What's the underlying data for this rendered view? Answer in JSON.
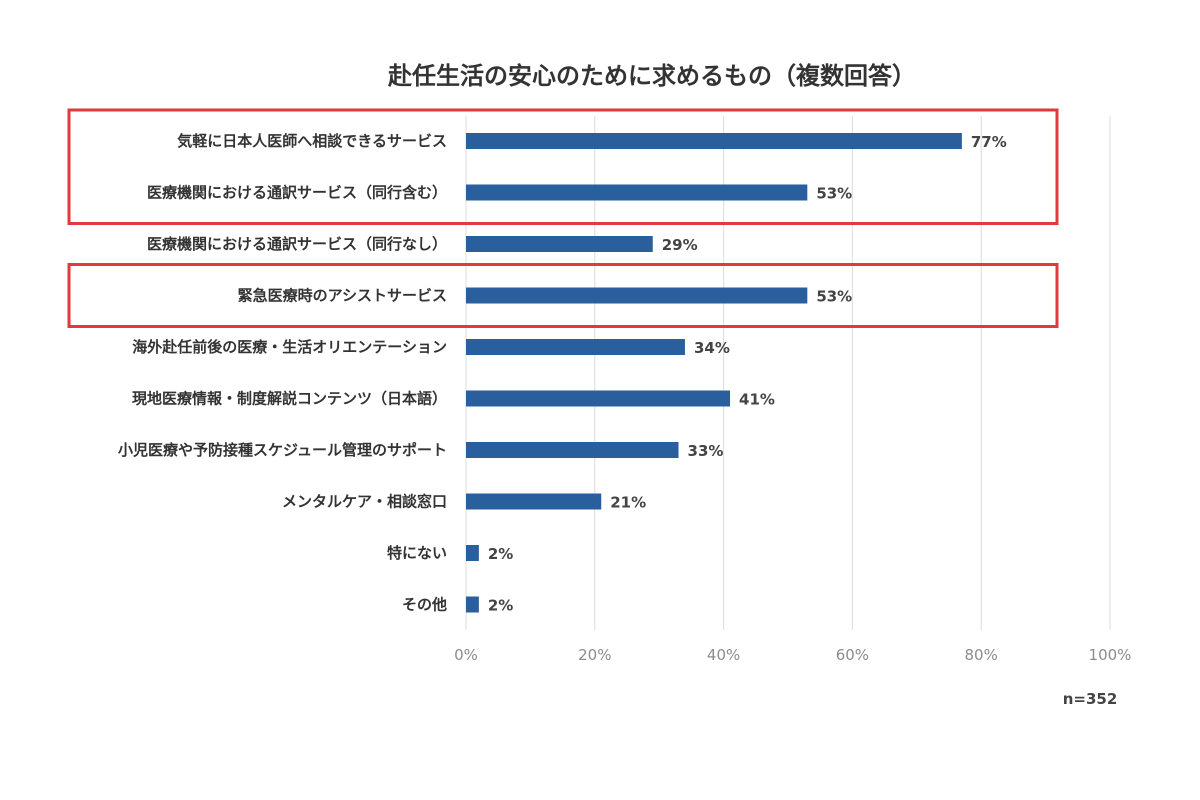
{
  "chart_data": {
    "type": "bar",
    "orientation": "horizontal",
    "title": "赴任生活の安心のために求めるもの（複数回答）",
    "categories": [
      "気軽に日本人医師へ相談できるサービス",
      "医療機関における通訳サービス（同行含む）",
      "医療機関における通訳サービス（同行なし）",
      "緊急医療時のアシストサービス",
      "海外赴任前後の医療・生活オリエンテーション",
      "現地医療情報・制度解説コンテンツ（日本語）",
      "小児医療や予防接種スケジュール管理のサポート",
      "メンタルケア・相談窓口",
      "特にない",
      "その他"
    ],
    "values": [
      77,
      53,
      29,
      53,
      34,
      41,
      33,
      21,
      2,
      2
    ],
    "value_labels": [
      "77%",
      "53%",
      "29%",
      "53%",
      "34%",
      "41%",
      "33%",
      "21%",
      "2%",
      "2%"
    ],
    "xlim": [
      0,
      100
    ],
    "x_ticks": [
      "0%",
      "20%",
      "40%",
      "60%",
      "80%",
      "100%"
    ],
    "grid": "vertical",
    "bar_color": "#2a5f9e",
    "highlight_color": "#e0393e",
    "highlighted_groups": [
      [
        0,
        1
      ],
      [
        3
      ]
    ],
    "sample_note": "n=352"
  }
}
